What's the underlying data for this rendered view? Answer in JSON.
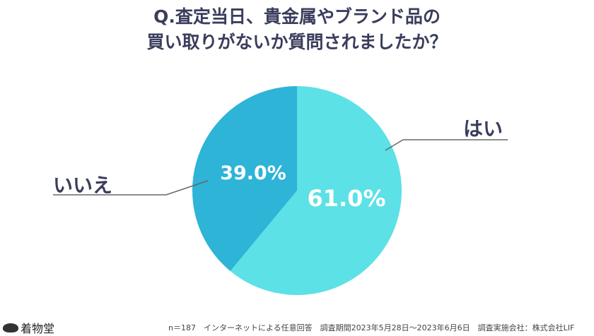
{
  "chart_data": {
    "type": "pie",
    "title": [
      "Q.査定当日、貴金属やブランド品の",
      "買い取りがないか質問されましたか？"
    ],
    "slices": [
      {
        "label": "はい",
        "value": 61.0,
        "display": "61.0%",
        "color": "#5ce1e6"
      },
      {
        "label": "いいえ",
        "value": 39.0,
        "display": "39.0%",
        "color": "#2db4d6"
      }
    ]
  },
  "footer": "n＝187　インターネットによる任意回答　調査期間2023年5月28日～2023年6月6日　調査実施会社：株式会社LIF",
  "logo": "着物堂"
}
